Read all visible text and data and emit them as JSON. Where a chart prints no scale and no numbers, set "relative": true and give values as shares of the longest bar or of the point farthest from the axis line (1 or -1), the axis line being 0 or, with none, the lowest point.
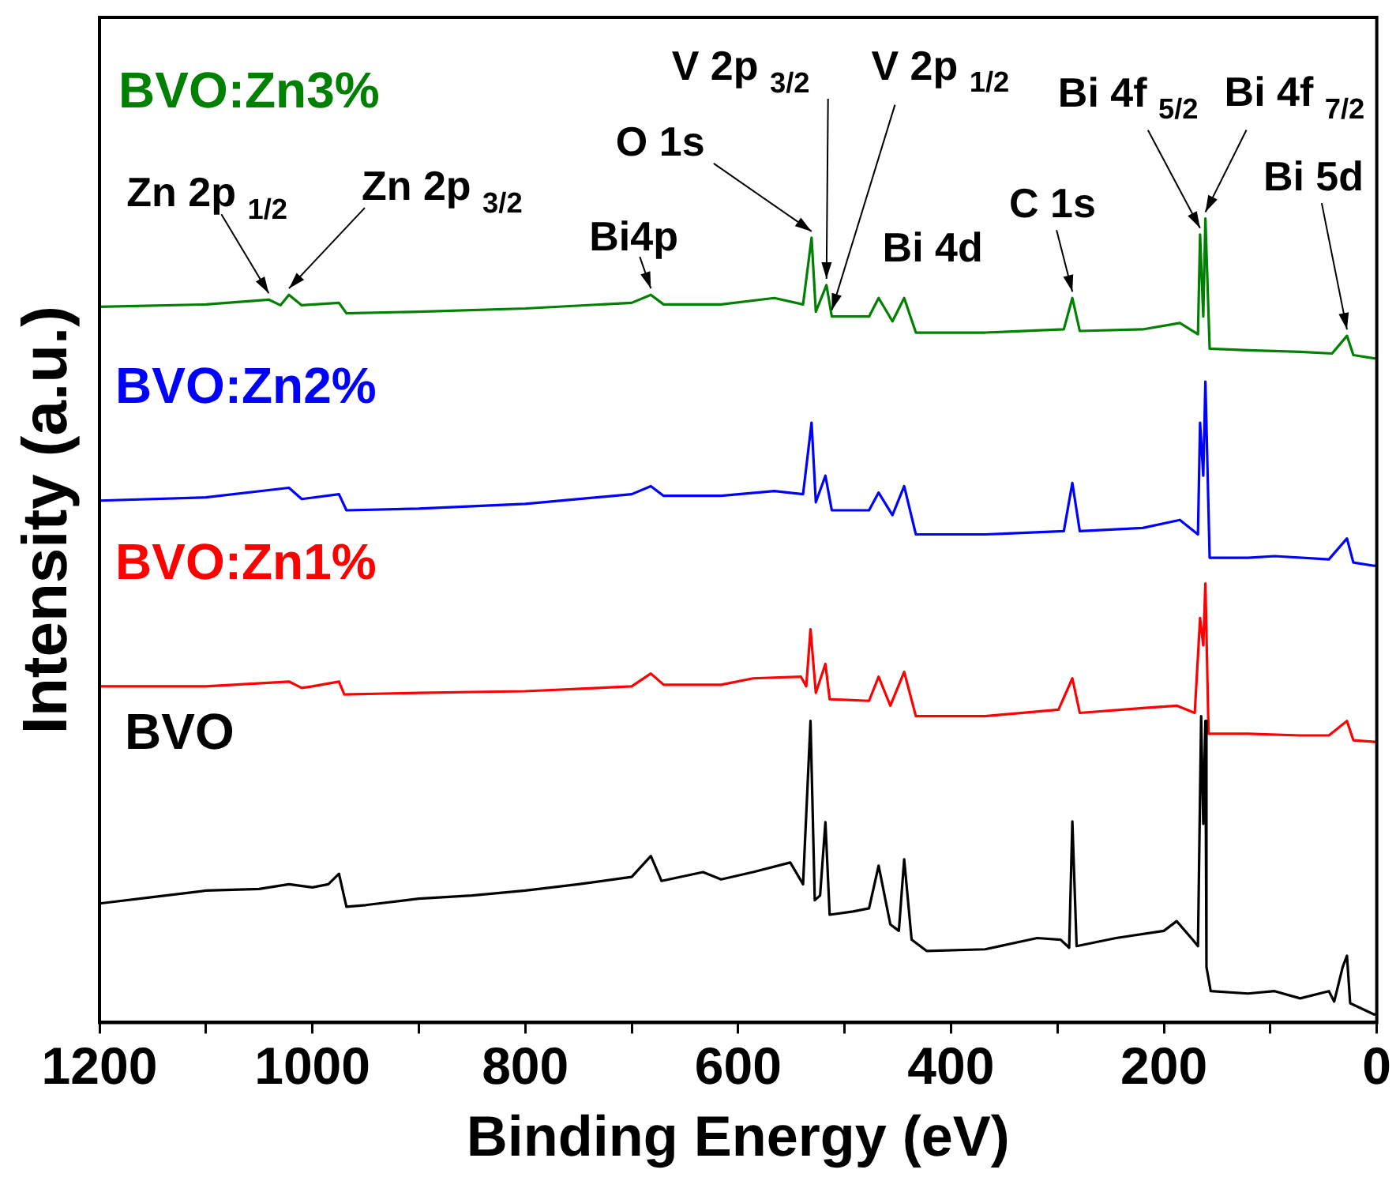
{
  "chart_data": {
    "type": "line",
    "relative": true,
    "xlabel": "Binding Energy (eV)",
    "ylabel": "Intensity (a.u.)",
    "xlim": [
      1200,
      0
    ],
    "xticks": [
      1200,
      {
        "value": 1100,
        "label": null
      },
      1000,
      {
        "value": 900,
        "label": null
      },
      800,
      {
        "value": 700,
        "label": null
      },
      600,
      {
        "value": 500,
        "label": null
      },
      400,
      {
        "value": 300,
        "label": null
      },
      200,
      {
        "value": 100,
        "label": null
      },
      0
    ],
    "legend": "left",
    "grid": false,
    "marker": "none",
    "line_style": "solid",
    "series": [
      {
        "name": "BVO",
        "color": "#000000",
        "x": [
          1200,
          1150,
          1100,
          1050,
          1022,
          1000,
          985,
          975,
          968,
          950,
          900,
          850,
          800,
          750,
          700,
          682,
          672,
          633,
          616,
          586,
          551,
          539,
          532,
          528,
          523,
          518,
          514,
          492,
          477,
          468,
          457,
          449,
          444,
          437,
          423,
          368,
          319,
          297,
          289,
          286,
          282,
          245,
          200,
          188,
          173,
          168,
          165,
          163,
          161,
          160,
          156,
          121,
          96,
          72,
          45,
          40,
          32,
          28,
          25,
          2.5,
          0
        ],
        "values": [
          0.148,
          0.156,
          0.164,
          0.166,
          0.172,
          0.168,
          0.172,
          0.185,
          0.144,
          0.146,
          0.154,
          0.158,
          0.164,
          0.172,
          0.181,
          0.207,
          0.176,
          0.187,
          0.178,
          0.187,
          0.199,
          0.172,
          0.375,
          0.152,
          0.158,
          0.249,
          0.134,
          0.138,
          0.142,
          0.195,
          0.122,
          0.114,
          0.203,
          0.103,
          0.089,
          0.091,
          0.105,
          0.103,
          0.093,
          0.25,
          0.095,
          0.105,
          0.114,
          0.126,
          0.103,
          0.095,
          0.381,
          0.247,
          0.375,
          0.069,
          0.039,
          0.036,
          0.039,
          0.03,
          0.039,
          0.026,
          0.069,
          0.083,
          0.024,
          0.01,
          0.01
        ]
      },
      {
        "name": "BVO:Zn1%",
        "color": "#ff0000",
        "x": [
          1200,
          1100,
          1022,
          1010,
          1000,
          975,
          970,
          900,
          800,
          700,
          682,
          670,
          616,
          586,
          541,
          536,
          532,
          527,
          518,
          514,
          477,
          468,
          457,
          444,
          433,
          368,
          299,
          286,
          279,
          220,
          188,
          171,
          166,
          163,
          161,
          158,
          121,
          72,
          45,
          28,
          22,
          2.5,
          0
        ],
        "values": [
          0.418,
          0.418,
          0.424,
          0.416,
          0.418,
          0.424,
          0.408,
          0.41,
          0.412,
          0.418,
          0.434,
          0.42,
          0.42,
          0.428,
          0.43,
          0.418,
          0.489,
          0.41,
          0.446,
          0.402,
          0.4,
          0.43,
          0.394,
          0.436,
          0.381,
          0.381,
          0.389,
          0.428,
          0.385,
          0.391,
          0.394,
          0.385,
          0.503,
          0.469,
          0.546,
          0.359,
          0.359,
          0.357,
          0.357,
          0.375,
          0.351,
          0.349,
          0.349
        ]
      },
      {
        "name": "BVO:Zn2%",
        "color": "#0000ff",
        "x": [
          1200,
          1100,
          1022,
          1010,
          975,
          968,
          900,
          800,
          700,
          682,
          670,
          616,
          566,
          539,
          531,
          527,
          518,
          512,
          477,
          468,
          455,
          444,
          433,
          368,
          294,
          286,
          279,
          220,
          185,
          168,
          166,
          163,
          161,
          157,
          121,
          96,
          45,
          28,
          22,
          2.5,
          0
        ],
        "values": [
          0.649,
          0.653,
          0.665,
          0.651,
          0.657,
          0.637,
          0.639,
          0.645,
          0.657,
          0.667,
          0.655,
          0.655,
          0.661,
          0.657,
          0.746,
          0.647,
          0.68,
          0.637,
          0.637,
          0.659,
          0.631,
          0.667,
          0.607,
          0.607,
          0.611,
          0.671,
          0.611,
          0.615,
          0.625,
          0.607,
          0.746,
          0.68,
          0.797,
          0.578,
          0.578,
          0.58,
          0.576,
          0.602,
          0.572,
          0.568,
          0.568
        ]
      },
      {
        "name": "BVO:Zn3%",
        "color": "#008000",
        "x": [
          1200,
          1100,
          1041,
          1030,
          1022,
          1010,
          975,
          968,
          900,
          800,
          700,
          682,
          670,
          616,
          566,
          539,
          531,
          527,
          517,
          512,
          477,
          468,
          455,
          444,
          433,
          368,
          294,
          286,
          279,
          220,
          185,
          168,
          166,
          163,
          161,
          157,
          121,
          72,
          42,
          28,
          22,
          2.5,
          0
        ],
        "values": [
          0.89,
          0.893,
          0.899,
          0.892,
          0.905,
          0.892,
          0.895,
          0.882,
          0.884,
          0.888,
          0.895,
          0.905,
          0.893,
          0.893,
          0.901,
          0.893,
          0.976,
          0.884,
          0.917,
          0.878,
          0.878,
          0.901,
          0.872,
          0.901,
          0.858,
          0.858,
          0.862,
          0.901,
          0.86,
          0.862,
          0.87,
          0.856,
          0.98,
          0.878,
          1.0,
          0.838,
          0.836,
          0.834,
          0.832,
          0.854,
          0.83,
          0.826,
          0.826
        ]
      }
    ],
    "annotations": [
      {
        "text": "Zn 2p $_{1/2}$",
        "x": 1041,
        "y": 0.899
      },
      {
        "text": "Zn 2p $_{3/2}$",
        "x": 1022,
        "y": 0.905
      },
      {
        "text": "Bi4p",
        "x": 682,
        "y": 0.905
      },
      {
        "text": "O 1s",
        "x": 531,
        "y": 0.976
      },
      {
        "text": "V 2p $_{3/2}$",
        "x": 517,
        "y": 0.917
      },
      {
        "text": "V 2p $_{1/2}$",
        "x": 512,
        "y": 0.878
      },
      "Bi 4d",
      {
        "text": "C 1s",
        "x": 286,
        "y": 0.901
      },
      {
        "text": "Bi 4f $_{5/2}$",
        "x": 166,
        "y": 0.98
      },
      {
        "text": "Bi 4f $_{7/2}$",
        "x": 161,
        "y": 1.0
      },
      {
        "text": "Bi 5d",
        "x": 28,
        "y": 0.854
      }
    ]
  }
}
